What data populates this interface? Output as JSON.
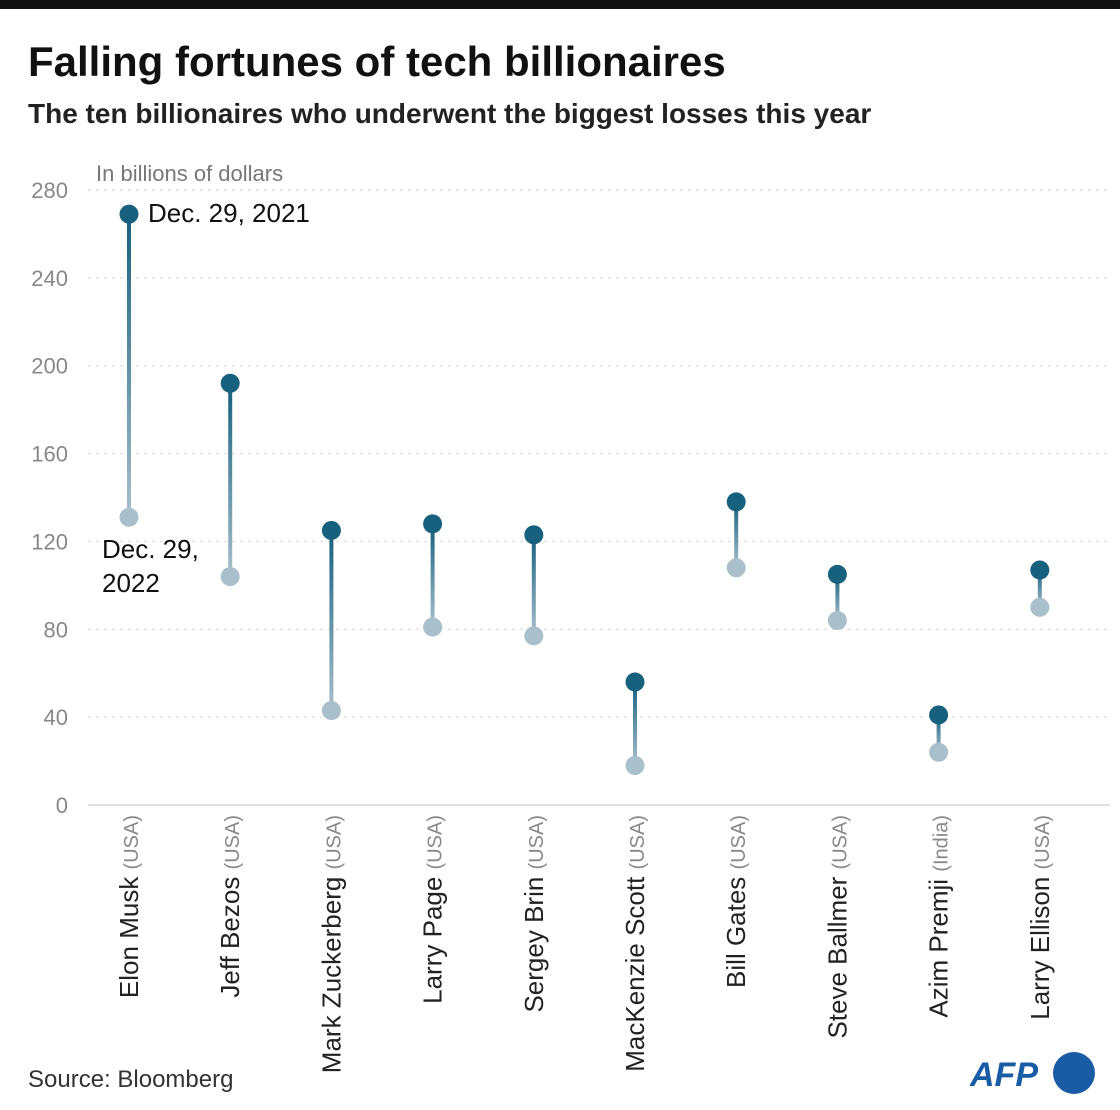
{
  "title": "Falling fortunes of tech billionaires",
  "subtitle": "The ten billionaires who underwent the biggest losses this year",
  "source": "Source: Bloomberg",
  "logo_text": "AFP",
  "colors": {
    "start": "#17607e",
    "end": "#a9bfcc",
    "logo": "#1a5ba6"
  },
  "chart_data": {
    "type": "dumbbell",
    "ylabel": "In billions of dollars",
    "ylim": [
      0,
      280
    ],
    "yticks": [
      0,
      40,
      80,
      120,
      160,
      200,
      240,
      280
    ],
    "grid": true,
    "categories": [
      {
        "name": "Elon Musk",
        "country": "(USA)"
      },
      {
        "name": "Jeff Bezos",
        "country": "(USA)"
      },
      {
        "name": "Mark Zuckerberg",
        "country": "(USA)"
      },
      {
        "name": "Larry Page",
        "country": "(USA)"
      },
      {
        "name": "Sergey Brin",
        "country": "(USA)"
      },
      {
        "name": "MacKenzie Scott",
        "country": "(USA)"
      },
      {
        "name": "Bill Gates",
        "country": "(USA)"
      },
      {
        "name": "Steve Ballmer",
        "country": "(USA)"
      },
      {
        "name": "Azim Premji",
        "country": "(India)"
      },
      {
        "name": "Larry Ellison",
        "country": "(USA)"
      }
    ],
    "series": [
      {
        "name": "Dec. 29, 2021",
        "values": [
          269,
          192,
          125,
          128,
          123,
          56,
          138,
          105,
          41,
          107
        ]
      },
      {
        "name": "Dec. 29, 2022",
        "values": [
          131,
          104,
          43,
          81,
          77,
          18,
          108,
          84,
          24,
          90
        ]
      }
    ],
    "annotations": {
      "start_label": "Dec. 29, 2021",
      "end_label_line1": "Dec. 29,",
      "end_label_line2": "2022"
    }
  }
}
